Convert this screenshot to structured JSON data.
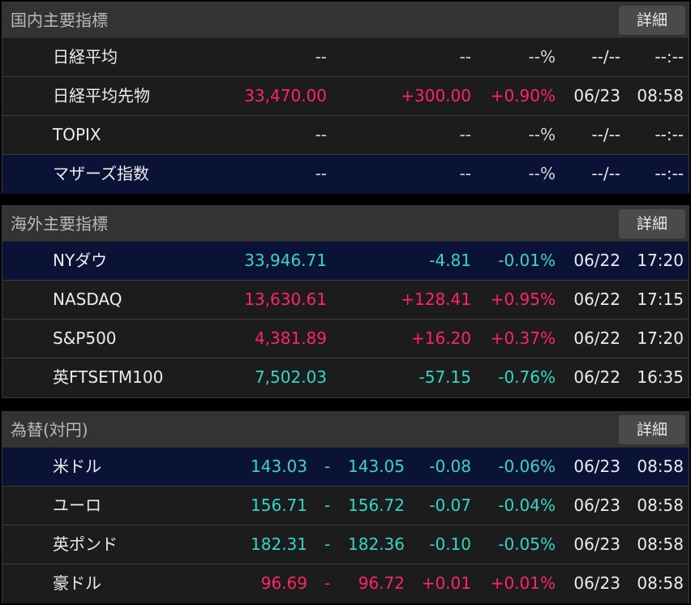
{
  "colors": {
    "up": "#ff2463",
    "down": "#33d6c6",
    "neutral": "#d7d7d7"
  },
  "domestic": {
    "title": "国内主要指標",
    "detail_label": "詳細",
    "rows": [
      {
        "name": "日経平均",
        "value": "--",
        "change": "--",
        "pct": "--%",
        "date": "--/--",
        "time": "--:--",
        "dir": "neutral"
      },
      {
        "name": "日経平均先物",
        "value": "33,470.00",
        "change": "+300.00",
        "pct": "+0.90%",
        "date": "06/23",
        "time": "08:58",
        "dir": "up"
      },
      {
        "name": "TOPIX",
        "value": "--",
        "change": "--",
        "pct": "--%",
        "date": "--/--",
        "time": "--:--",
        "dir": "neutral"
      },
      {
        "name": "マザーズ指数",
        "value": "--",
        "change": "--",
        "pct": "--%",
        "date": "--/--",
        "time": "--:--",
        "dir": "neutral",
        "selected": true
      }
    ]
  },
  "overseas": {
    "title": "海外主要指標",
    "detail_label": "詳細",
    "rows": [
      {
        "name": "NYダウ",
        "value": "33,946.71",
        "change": "-4.81",
        "pct": "-0.01%",
        "date": "06/22",
        "time": "17:20",
        "dir": "down",
        "selected": true
      },
      {
        "name": "NASDAQ",
        "value": "13,630.61",
        "change": "+128.41",
        "pct": "+0.95%",
        "date": "06/22",
        "time": "17:15",
        "dir": "up"
      },
      {
        "name": "S&P500",
        "value": "4,381.89",
        "change": "+16.20",
        "pct": "+0.37%",
        "date": "06/22",
        "time": "17:20",
        "dir": "up"
      },
      {
        "name": "英FTSETM100",
        "value": "7,502.03",
        "change": "-57.15",
        "pct": "-0.76%",
        "date": "06/22",
        "time": "16:35",
        "dir": "down"
      }
    ]
  },
  "forex": {
    "title": "為替(対円)",
    "detail_label": "詳細",
    "rows": [
      {
        "name": "米ドル",
        "bid": "143.03",
        "sep": "-",
        "ask": "143.05",
        "change": "-0.08",
        "pct": "-0.06%",
        "date": "06/23",
        "time": "08:58",
        "dir": "down",
        "selected": true
      },
      {
        "name": "ユーロ",
        "bid": "156.71",
        "sep": "-",
        "ask": "156.72",
        "change": "-0.07",
        "pct": "-0.04%",
        "date": "06/23",
        "time": "08:58",
        "dir": "down"
      },
      {
        "name": "英ポンド",
        "bid": "182.31",
        "sep": "-",
        "ask": "182.36",
        "change": "-0.10",
        "pct": "-0.05%",
        "date": "06/23",
        "time": "08:58",
        "dir": "down"
      },
      {
        "name": "豪ドル",
        "bid": "96.69",
        "sep": "-",
        "ask": "96.72",
        "change": "+0.01",
        "pct": "+0.01%",
        "date": "06/23",
        "time": "08:58",
        "dir": "up"
      }
    ]
  }
}
